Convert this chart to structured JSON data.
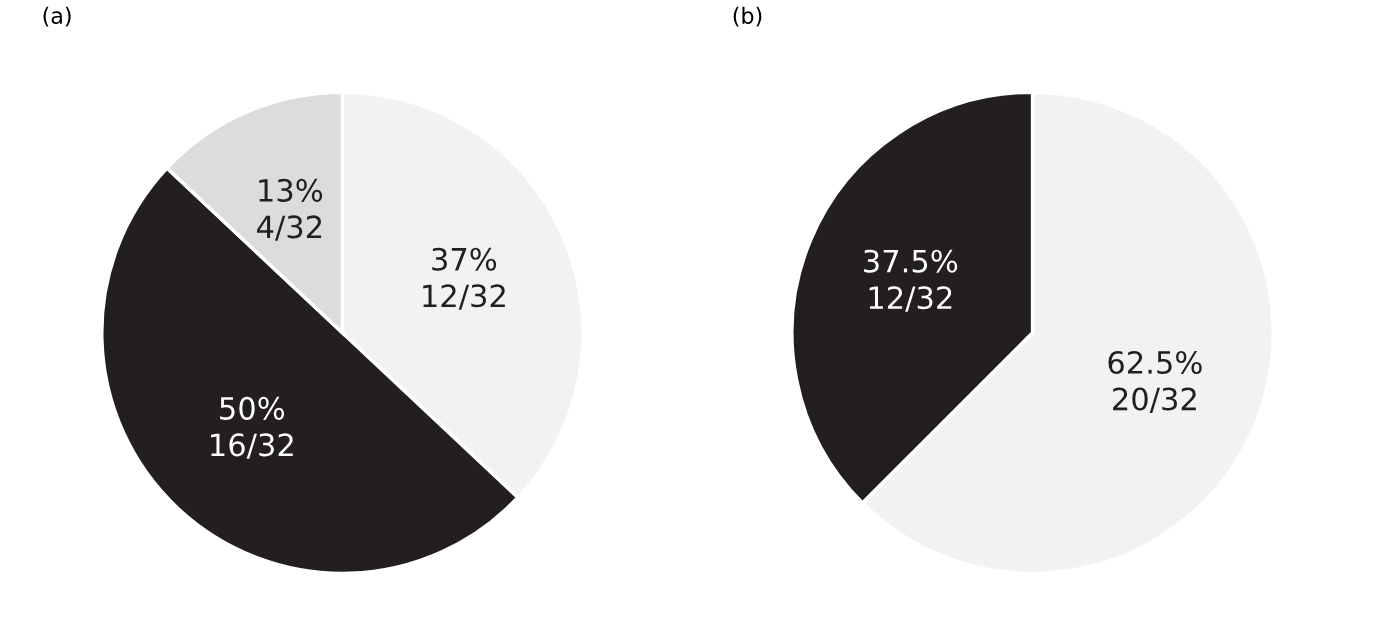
{
  "chart_data": [
    {
      "type": "pie",
      "title": "(a)",
      "categories": [
        null,
        null,
        null
      ],
      "values": [
        37,
        50,
        13
      ],
      "colors": [
        "#f2f2f2",
        "#231f20",
        "#dcdcdc"
      ],
      "value_labels": [
        "37%\n12/32",
        "50%\n16/32",
        "13%\n4/32"
      ]
    },
    {
      "type": "pie",
      "title": "(b)",
      "categories": [
        null,
        null
      ],
      "values": [
        62.5,
        37.5
      ],
      "colors": [
        "#f2f2f2",
        "#231f20"
      ],
      "value_labels": [
        "62.5%\n20/32",
        "37.5%\n12/32"
      ]
    }
  ]
}
